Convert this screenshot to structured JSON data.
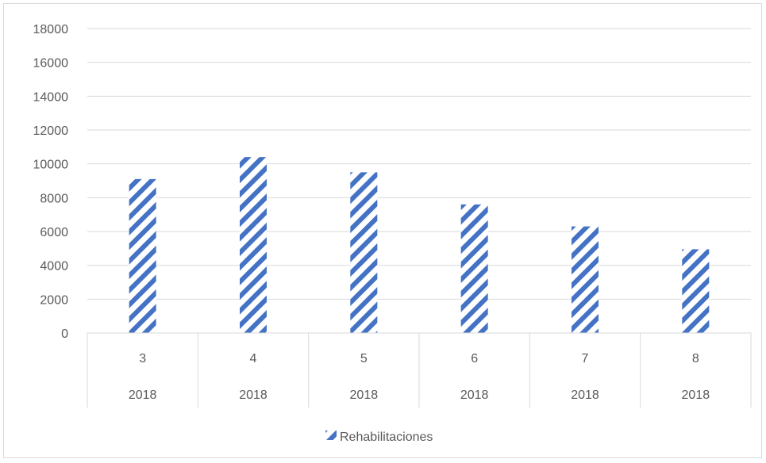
{
  "chart_data": {
    "type": "bar",
    "title": "",
    "xlabel": "",
    "ylabel": "",
    "ylim": [
      0,
      18000
    ],
    "y_ticks": [
      "0",
      "2000",
      "4000",
      "6000",
      "8000",
      "10000",
      "12000",
      "14000",
      "16000",
      "18000"
    ],
    "categories": [
      {
        "month": "3",
        "year": "2018"
      },
      {
        "month": "4",
        "year": "2018"
      },
      {
        "month": "5",
        "year": "2018"
      },
      {
        "month": "6",
        "year": "2018"
      },
      {
        "month": "7",
        "year": "2018"
      },
      {
        "month": "8",
        "year": "2018"
      }
    ],
    "series": [
      {
        "name": "Rehabilitaciones",
        "values": [
          9100,
          10400,
          9500,
          7600,
          6300,
          4950
        ],
        "color": "#4472c4",
        "pattern": "diagonal-stripes"
      }
    ],
    "grid": true,
    "legend_position": "bottom"
  }
}
